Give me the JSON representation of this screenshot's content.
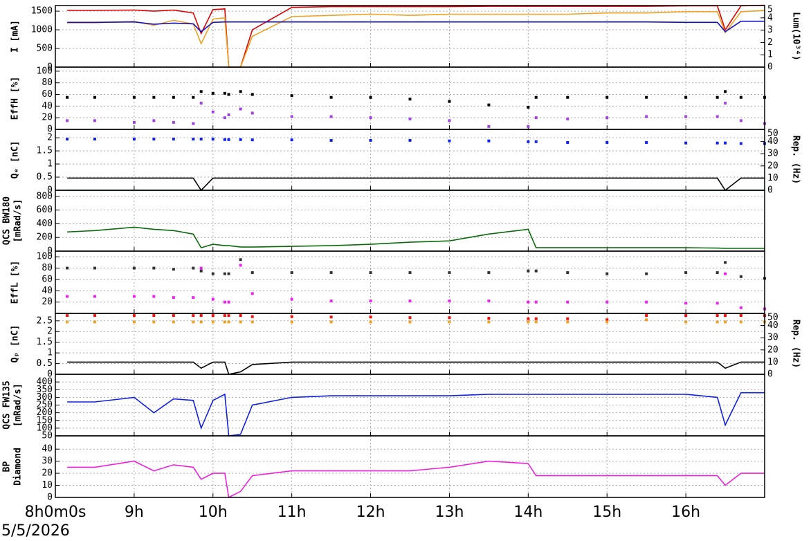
{
  "date": "5/5/2026",
  "chart_data": [
    {
      "type": "line",
      "ylabel": "I [mA]",
      "y2label": "Lum(10³⁴)",
      "x": [
        8.15,
        8.5,
        9,
        9.25,
        9.5,
        9.75,
        9.85,
        10,
        10.15,
        10.2,
        10.35,
        10.5,
        11,
        11.5,
        12,
        12.5,
        13,
        13.5,
        14,
        14.1,
        14.5,
        15,
        15.5,
        16,
        16.4,
        16.5,
        16.7,
        17
      ],
      "xlim": [
        8,
        17
      ],
      "xticks": [
        9,
        10,
        11,
        12,
        13,
        14,
        15,
        16
      ],
      "ylim": [
        0,
        1650
      ],
      "yticks": [
        0,
        500,
        1000,
        1500
      ],
      "y2lim": [
        0,
        5
      ],
      "y2ticks": [
        0,
        1,
        2,
        3,
        4,
        5
      ],
      "grid": true,
      "series": [
        {
          "color": "#e00000",
          "values": [
            1520,
            1520,
            1530,
            1500,
            1530,
            1450,
            900,
            1540,
            1560,
            0,
            0,
            1000,
            1600,
            1620,
            1620,
            1620,
            1620,
            1630,
            1630,
            1630,
            1630,
            1630,
            1630,
            1640,
            1640,
            1000,
            1640,
            1660
          ]
        },
        {
          "color": "#f0a020",
          "axis": "y2",
          "values": [
            3.6,
            3.6,
            3.7,
            3.4,
            3.8,
            3.5,
            1.9,
            3.9,
            4.0,
            0,
            0,
            2.5,
            4.1,
            4.2,
            4.3,
            4.2,
            4.3,
            4.3,
            4.3,
            4.3,
            4.3,
            4.4,
            4.4,
            4.5,
            4.5,
            2.8,
            4.5,
            4.6
          ]
        },
        {
          "color": "#1010c0",
          "values": [
            1200,
            1200,
            1210,
            1150,
            1180,
            1160,
            950,
            1200,
            1210,
            1210,
            1210,
            1210,
            1210,
            1210,
            1210,
            1210,
            1210,
            1210,
            1210,
            1210,
            1210,
            1210,
            1210,
            1200,
            1200,
            950,
            1230,
            1230
          ]
        }
      ]
    },
    {
      "type": "scatter",
      "ylabel": "EffH [%]",
      "x": [
        8.15,
        8.5,
        9,
        9.25,
        9.5,
        9.75,
        9.85,
        10,
        10.15,
        10.2,
        10.35,
        10.5,
        11,
        11.5,
        12,
        12.5,
        13,
        13.5,
        14,
        14.1,
        14.5,
        15,
        15.5,
        16,
        16.4,
        16.5,
        16.7,
        17
      ],
      "xlim": [
        8,
        17
      ],
      "xticks": [
        9,
        10,
        11,
        12,
        13,
        14,
        15,
        16
      ],
      "ylim": [
        0,
        107
      ],
      "yticks": [
        0,
        20,
        40,
        60,
        80,
        100
      ],
      "grid": true,
      "series": [
        {
          "color": "#000000",
          "values": [
            55,
            55,
            55,
            55,
            55,
            55,
            65,
            62,
            62,
            60,
            65,
            60,
            58,
            55,
            55,
            52,
            48,
            42,
            38,
            55,
            55,
            55,
            55,
            55,
            55,
            65,
            55,
            55
          ]
        },
        {
          "color": "#a040e0",
          "values": [
            15,
            15,
            12,
            15,
            12,
            10,
            45,
            30,
            20,
            25,
            35,
            28,
            22,
            22,
            20,
            18,
            15,
            5,
            5,
            20,
            18,
            20,
            22,
            22,
            22,
            45,
            15,
            10
          ]
        }
      ]
    },
    {
      "type": "scatter",
      "ylabel": "Qₑ [nC]",
      "y2label": "Rep. (Hz)",
      "x": [
        8.15,
        8.5,
        9,
        9.25,
        9.5,
        9.75,
        9.85,
        10,
        10.15,
        10.2,
        10.35,
        10.5,
        11,
        11.5,
        12,
        12.5,
        13,
        13.5,
        14,
        14.1,
        14.5,
        15,
        15.5,
        16,
        16.4,
        16.5,
        16.7,
        17
      ],
      "xlim": [
        8,
        17
      ],
      "xticks": [
        9,
        10,
        11,
        12,
        13,
        14,
        15,
        16
      ],
      "ylim": [
        0,
        2.32
      ],
      "yticks": [
        0,
        0.5,
        1,
        1.5,
        2
      ],
      "y2lim": [
        0,
        50
      ],
      "y2ticks": [
        0,
        10,
        20,
        30,
        40,
        50
      ],
      "grid": true,
      "series": [
        {
          "color": "#1020f0",
          "values": [
            1.95,
            1.95,
            1.95,
            1.95,
            1.95,
            1.95,
            1.95,
            1.95,
            1.93,
            1.93,
            1.93,
            1.92,
            1.92,
            1.9,
            1.9,
            1.9,
            1.88,
            1.88,
            1.85,
            1.85,
            1.82,
            1.82,
            1.82,
            1.8,
            1.8,
            1.8,
            1.78,
            1.78
          ]
        },
        {
          "color": "#000000",
          "type": "line",
          "axis": "y2",
          "values": [
            10,
            10,
            10,
            10,
            10,
            10,
            0,
            10,
            10,
            10,
            10,
            10,
            10,
            10,
            10,
            10,
            10,
            10,
            10,
            10,
            10,
            10,
            10,
            10,
            10,
            0,
            10,
            10
          ]
        },
        {
          "color": "#20d0e0",
          "type": "line",
          "values": [
            0,
            0,
            0,
            0,
            0,
            0,
            0,
            0,
            0,
            0,
            0,
            0,
            0,
            0,
            0,
            0,
            0,
            0,
            0,
            0,
            0,
            0,
            0,
            0,
            0,
            0,
            0,
            0
          ]
        }
      ]
    },
    {
      "type": "line",
      "ylabel": "QCS BW180",
      "ylabel2": "[mRad/s]",
      "x": [
        8.15,
        8.5,
        9,
        9.25,
        9.5,
        9.75,
        9.85,
        10,
        10.15,
        10.2,
        10.35,
        10.5,
        11,
        11.5,
        12,
        12.5,
        13,
        13.5,
        14,
        14.1,
        14.5,
        15,
        15.5,
        16,
        16.4,
        16.5,
        16.7,
        17
      ],
      "xlim": [
        8,
        17
      ],
      "xticks": [
        9,
        10,
        11,
        12,
        13,
        14,
        15,
        16
      ],
      "ylim": [
        0,
        890
      ],
      "yticks": [
        0,
        200,
        400,
        600,
        800
      ],
      "grid": true,
      "series": [
        {
          "color": "#0a6a0a",
          "values": [
            280,
            300,
            350,
            320,
            300,
            250,
            50,
            100,
            80,
            80,
            60,
            60,
            70,
            80,
            100,
            130,
            150,
            250,
            320,
            50,
            50,
            50,
            50,
            50,
            45,
            40,
            40,
            40
          ]
        }
      ]
    },
    {
      "type": "scatter",
      "ylabel": "EffL [%]",
      "x": [
        8.15,
        8.5,
        9,
        9.25,
        9.5,
        9.75,
        9.85,
        10,
        10.15,
        10.2,
        10.35,
        10.5,
        11,
        11.5,
        12,
        12.5,
        13,
        13.5,
        14,
        14.1,
        14.5,
        15,
        15.5,
        16,
        16.4,
        16.5,
        16.7,
        17
      ],
      "xlim": [
        8,
        17
      ],
      "xticks": [
        9,
        10,
        11,
        12,
        13,
        14,
        15,
        16
      ],
      "ylim": [
        0,
        110
      ],
      "yticks": [
        20,
        40,
        60,
        80,
        100
      ],
      "grid": true,
      "series": [
        {
          "color": "#333333",
          "values": [
            80,
            80,
            80,
            80,
            78,
            80,
            75,
            70,
            70,
            70,
            95,
            72,
            72,
            72,
            72,
            72,
            72,
            72,
            75,
            75,
            72,
            70,
            70,
            72,
            72,
            90,
            65,
            62
          ]
        },
        {
          "color": "#f020f0",
          "values": [
            30,
            30,
            30,
            30,
            28,
            28,
            80,
            25,
            20,
            20,
            85,
            35,
            25,
            22,
            22,
            22,
            22,
            22,
            20,
            20,
            20,
            20,
            20,
            18,
            18,
            70,
            10,
            8
          ]
        }
      ]
    },
    {
      "type": "scatter",
      "ylabel": "Qₚ [nC]",
      "y2label": "Rep. (Hz)",
      "x": [
        8.15,
        8.5,
        9,
        9.25,
        9.5,
        9.75,
        9.85,
        10,
        10.15,
        10.2,
        10.35,
        10.5,
        11,
        11.5,
        12,
        12.5,
        13,
        13.5,
        14,
        14.1,
        14.5,
        15,
        15.5,
        16,
        16.4,
        16.5,
        16.7,
        17
      ],
      "xlim": [
        8,
        17
      ],
      "xticks": [
        9,
        10,
        11,
        12,
        13,
        14,
        15,
        16
      ],
      "ylim": [
        0,
        2.85
      ],
      "yticks": [
        0,
        0.5,
        1,
        1.5,
        2,
        2.5
      ],
      "y2lim": [
        0,
        50
      ],
      "y2ticks": [
        0,
        10,
        20,
        30,
        40,
        50
      ],
      "grid": true,
      "series": [
        {
          "color": "#f01010",
          "values": [
            2.75,
            2.75,
            2.75,
            2.75,
            2.75,
            2.75,
            2.75,
            2.75,
            2.75,
            2.75,
            2.75,
            2.7,
            2.7,
            2.68,
            2.68,
            2.65,
            2.65,
            2.62,
            2.6,
            2.6,
            2.6,
            2.55,
            2.75,
            2.75,
            2.75,
            2.75,
            2.75,
            2.75
          ]
        },
        {
          "color": "#f0a020",
          "values": [
            2.45,
            2.45,
            2.45,
            2.45,
            2.45,
            2.45,
            2.45,
            2.45,
            2.45,
            2.45,
            2.45,
            2.45,
            2.45,
            2.45,
            2.45,
            2.45,
            2.45,
            2.45,
            2.45,
            2.45,
            2.45,
            2.45,
            2.55,
            2.45,
            2.45,
            2.45,
            2.45,
            2.45
          ]
        },
        {
          "color": "#000000",
          "type": "line",
          "axis": "y2",
          "values": [
            10,
            10,
            10,
            10,
            10,
            10,
            5,
            10,
            10,
            0,
            2,
            8,
            10,
            10,
            10,
            10,
            10,
            10,
            10,
            10,
            10,
            10,
            10,
            10,
            10,
            5,
            10,
            10
          ]
        }
      ]
    },
    {
      "type": "line",
      "ylabel": "QCS FW135",
      "ylabel2": "[mRad/s]",
      "x": [
        8.15,
        8.5,
        9,
        9.25,
        9.5,
        9.75,
        9.85,
        10,
        10.15,
        10.2,
        10.35,
        10.5,
        11,
        11.5,
        12,
        12.5,
        13,
        13.5,
        14,
        14.1,
        14.5,
        15,
        15.5,
        16,
        16.4,
        16.5,
        16.7,
        17
      ],
      "xlim": [
        8,
        17
      ],
      "xticks": [
        9,
        10,
        11,
        12,
        13,
        14,
        15,
        16
      ],
      "ylim": [
        50,
        450
      ],
      "yticks": [
        50,
        100,
        150,
        200,
        250,
        300,
        350,
        400
      ],
      "grid": true,
      "series": [
        {
          "color": "#1020e0",
          "values": [
            270,
            270,
            300,
            200,
            290,
            280,
            100,
            280,
            320,
            50,
            60,
            250,
            300,
            310,
            310,
            310,
            310,
            320,
            320,
            320,
            320,
            320,
            320,
            320,
            300,
            120,
            330,
            330
          ]
        }
      ]
    },
    {
      "type": "line",
      "ylabel": "BP",
      "ylabel2": "Diamond",
      "x": [
        8.15,
        8.5,
        9,
        9.25,
        9.5,
        9.75,
        9.85,
        10,
        10.15,
        10.2,
        10.35,
        10.5,
        11,
        11.5,
        12,
        12.5,
        13,
        13.5,
        14,
        14.1,
        14.5,
        15,
        15.5,
        16,
        16.4,
        16.5,
        16.7,
        17
      ],
      "xlim": [
        8,
        17
      ],
      "xticks": [
        {
          "value": 8,
          "label": "8h0m0s"
        },
        {
          "value": 9,
          "label": "9h"
        },
        {
          "value": 10,
          "label": "10h"
        },
        {
          "value": 11,
          "label": "11h"
        },
        {
          "value": 12,
          "label": "12h"
        },
        {
          "value": 13,
          "label": "13h"
        },
        {
          "value": 14,
          "label": "14h"
        },
        {
          "value": 15,
          "label": "15h"
        },
        {
          "value": 16,
          "label": "16h"
        }
      ],
      "ylim": [
        0,
        51
      ],
      "yticks": [
        0,
        10,
        20,
        30,
        40
      ],
      "grid": true,
      "series": [
        {
          "color": "#f020e0",
          "values": [
            25,
            25,
            30,
            22,
            27,
            25,
            15,
            20,
            20,
            0,
            5,
            18,
            22,
            22,
            22,
            22,
            25,
            30,
            28,
            18,
            18,
            18,
            18,
            18,
            18,
            10,
            20,
            20
          ]
        }
      ]
    }
  ]
}
